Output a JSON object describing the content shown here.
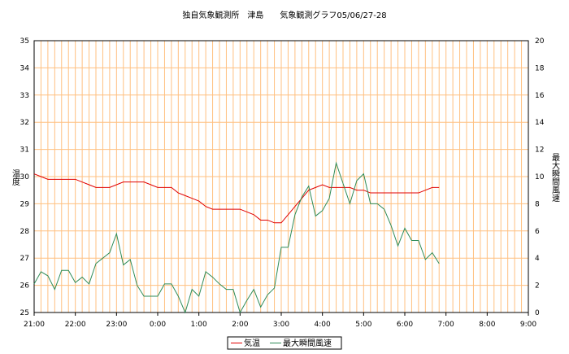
{
  "chart_data": {
    "type": "line",
    "title": "独自気象観測所　津島　　気象観測グラフ05/06/27-28",
    "y_left_label": "温度",
    "y_right_label": "最大瞬間風速",
    "x_ticks": [
      "21:00",
      "22:00",
      "23:00",
      "0:00",
      "1:00",
      "2:00",
      "3:00",
      "4:00",
      "5:00",
      "6:00",
      "7:00",
      "8:00",
      "9:00"
    ],
    "y_left_ticks": [
      "25",
      "26",
      "27",
      "28",
      "29",
      "30",
      "31",
      "32",
      "33",
      "34",
      "35"
    ],
    "y_right_ticks": [
      "0",
      "2",
      "4",
      "6",
      "8",
      "10",
      "12",
      "14",
      "16",
      "18",
      "20"
    ],
    "y_left_range": [
      25,
      35
    ],
    "y_right_range": [
      0,
      20
    ],
    "x_range": [
      0,
      72
    ],
    "grid": true,
    "legend_position": "bottom-center",
    "colors": {
      "temperature": "#e00000",
      "wind": "#2e8b57",
      "grid": "#ffc080",
      "frame": "#000000"
    },
    "series": [
      {
        "name": "気温",
        "axis": "left",
        "values": [
          30.1,
          30.0,
          29.9,
          29.9,
          29.9,
          29.9,
          29.9,
          29.8,
          29.7,
          29.6,
          29.6,
          29.6,
          29.7,
          29.8,
          29.8,
          29.8,
          29.8,
          29.7,
          29.6,
          29.6,
          29.6,
          29.4,
          29.3,
          29.2,
          29.1,
          28.9,
          28.8,
          28.8,
          28.8,
          28.8,
          28.8,
          28.7,
          28.6,
          28.4,
          28.4,
          28.3,
          28.3,
          28.6,
          28.9,
          29.2,
          29.5,
          29.6,
          29.7,
          29.6,
          29.6,
          29.6,
          29.6,
          29.5,
          29.5,
          29.4,
          29.4,
          29.4,
          29.4,
          29.4,
          29.4,
          29.4,
          29.4,
          29.5,
          29.6,
          29.6
        ]
      },
      {
        "name": "最大瞬間風速",
        "axis": "right",
        "values": [
          2.1,
          3.0,
          2.7,
          1.7,
          3.1,
          3.1,
          2.2,
          2.6,
          2.1,
          3.6,
          4.0,
          4.4,
          5.8,
          3.5,
          3.9,
          2.0,
          1.2,
          1.2,
          1.2,
          2.1,
          2.1,
          1.2,
          0.0,
          1.7,
          1.2,
          3.0,
          2.6,
          2.1,
          1.7,
          1.7,
          0.0,
          0.9,
          1.7,
          0.4,
          1.3,
          1.8,
          4.8,
          4.8,
          7.2,
          8.5,
          9.3,
          7.1,
          7.5,
          8.4,
          11.0,
          9.5,
          8.0,
          9.7,
          10.2,
          8.0,
          8.0,
          7.6,
          6.4,
          4.9,
          6.2,
          5.3,
          5.3,
          3.9,
          4.4,
          3.6
        ]
      }
    ]
  }
}
